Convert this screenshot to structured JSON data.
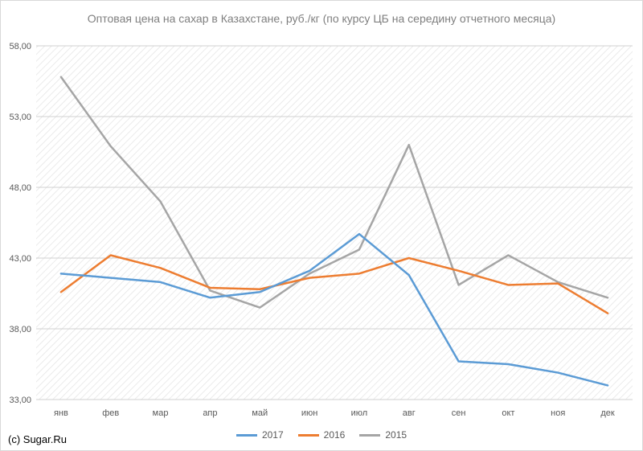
{
  "chart_data": {
    "type": "line",
    "title": "Оптовая цена на сахар в Казахстане, руб./кг (по курсу ЦБ на середину отчетного месяца)",
    "categories": [
      "янв",
      "фев",
      "мар",
      "апр",
      "май",
      "июн",
      "июл",
      "авг",
      "сен",
      "окт",
      "ноя",
      "дек"
    ],
    "ylim": [
      33,
      58
    ],
    "yticks": [
      "33,00",
      "38,00",
      "43,00",
      "48,00",
      "53,00",
      "58,00"
    ],
    "ytick_values": [
      33,
      38,
      43,
      48,
      53,
      58
    ],
    "grid": "horizontal",
    "background": "diagonal-hatch",
    "legend_position": "bottom",
    "series": [
      {
        "name": "2017",
        "color": "#5b9bd5",
        "values": [
          41.9,
          41.6,
          41.3,
          40.2,
          40.6,
          42.1,
          44.7,
          41.8,
          35.7,
          35.5,
          34.9,
          34.0
        ]
      },
      {
        "name": "2016",
        "color": "#ed7d31",
        "values": [
          40.6,
          43.2,
          42.3,
          40.9,
          40.8,
          41.6,
          41.9,
          43.0,
          42.1,
          41.1,
          41.2,
          39.1
        ]
      },
      {
        "name": "2015",
        "color": "#a5a5a5",
        "values": [
          55.8,
          50.9,
          47.0,
          40.7,
          39.5,
          41.9,
          43.6,
          51.0,
          41.1,
          43.2,
          41.3,
          40.2
        ]
      }
    ]
  },
  "copyright": "(c) Sugar.Ru"
}
